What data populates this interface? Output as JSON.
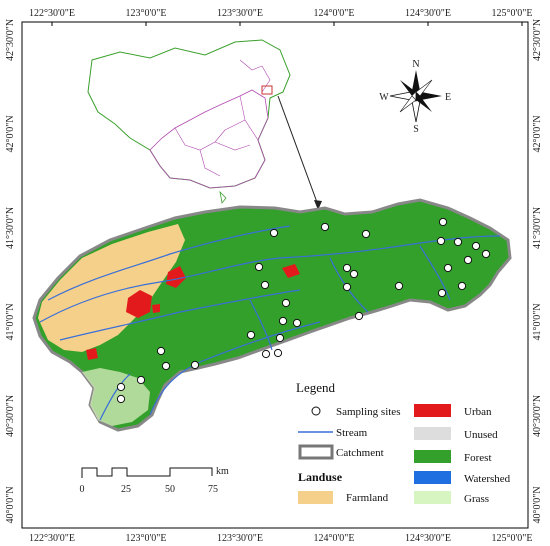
{
  "map": {
    "top_ticks": [
      "122°30'0\"E",
      "123°0'0\"E",
      "123°30'0\"E",
      "124°0'0\"E",
      "124°30'0\"E",
      "125°0'0\"E"
    ],
    "bottom_ticks": [
      "122°30'0\"E",
      "123°0'0\"E",
      "123°30'0\"E",
      "124°0'0\"E",
      "124°30'0\"E",
      "125°0'0\"E"
    ],
    "left_ticks": [
      "42°30'0\"N",
      "42°0'0\"N",
      "41°30'0\"N",
      "41°0'0\"N",
      "40°30'0\"N",
      "40°0'0\"N"
    ],
    "right_ticks": [
      "42°30'0\"N",
      "42°0'0\"N",
      "41°30'0\"N",
      "41°0'0\"N",
      "40°30'0\"N",
      "40°0'0\"N"
    ],
    "north_arrow": {
      "n": "N",
      "s": "S",
      "e": "E",
      "w": "W"
    },
    "scale_bar": {
      "unit": "km",
      "labels": [
        "0",
        "25",
        "50",
        "75"
      ]
    }
  },
  "legend": {
    "title": "Legend",
    "left_items": [
      {
        "label": "Sampling sites",
        "symbol": "circle"
      },
      {
        "label": "Stream",
        "symbol": "line",
        "color": "#3a6fd8"
      },
      {
        "label": "Catchment",
        "symbol": "rect-outline",
        "color": "#777777"
      }
    ],
    "landuse_title": "Landuse",
    "landuse_left": [
      {
        "label": "Farmland",
        "color": "#f5d08a"
      }
    ],
    "landuse_right": [
      {
        "label": "Urban",
        "color": "#e31a1c"
      },
      {
        "label": "Unused",
        "color": "#dddddd"
      },
      {
        "label": "Forest",
        "color": "#33a02c"
      },
      {
        "label": "Watershed",
        "color": "#1f6fe0"
      },
      {
        "label": "Grass",
        "color": "#d7f5c0"
      }
    ]
  }
}
